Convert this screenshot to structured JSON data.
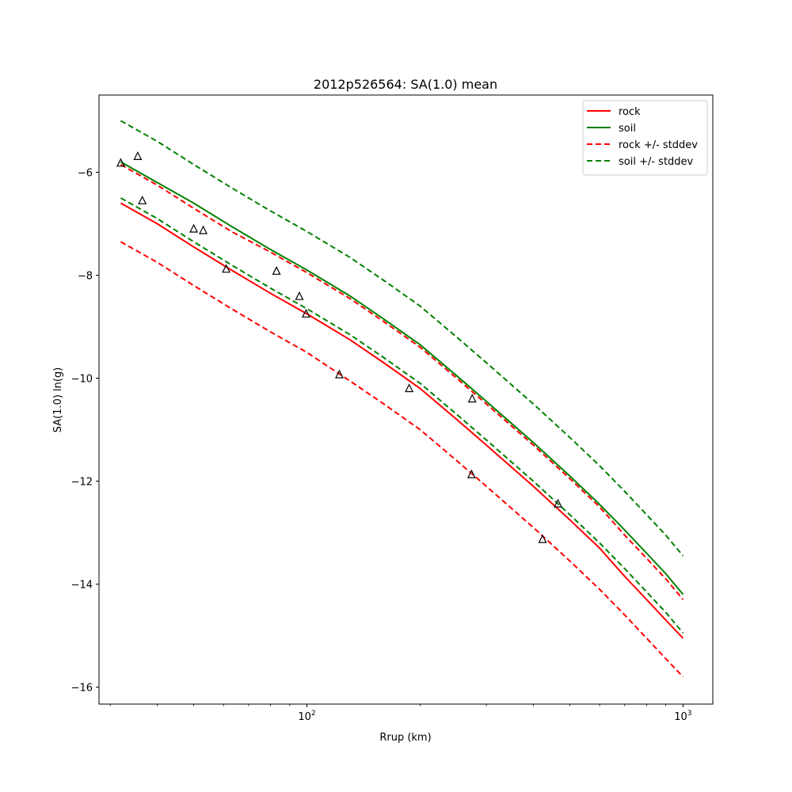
{
  "chart_data": {
    "type": "line",
    "title": "2012p526564: SA(1.0) mean",
    "xlabel": "Rrup (km)",
    "ylabel": "SA(1.0) ln(g)",
    "xscale": "log",
    "xlim": [
      28,
      1200
    ],
    "ylim": [
      -16.33,
      -4.5
    ],
    "x_major_ticks": [
      {
        "value": 100,
        "label": "10",
        "exp": "2"
      },
      {
        "value": 1000,
        "label": "10",
        "exp": "3"
      }
    ],
    "y_ticks": [
      -16,
      -14,
      -12,
      -10,
      -8,
      -6
    ],
    "y_tick_labels": [
      "−16",
      "−14",
      "−12",
      "−10",
      "−8",
      "−6"
    ],
    "grid": false,
    "legend_position": "upper right",
    "x": [
      32,
      40,
      50,
      63,
      80,
      100,
      130,
      160,
      200,
      250,
      300,
      400,
      500,
      600,
      700,
      800,
      900,
      1000
    ],
    "series": [
      {
        "name": "rock",
        "color": "#ff0000",
        "style": "solid",
        "values": [
          -6.6,
          -7.0,
          -7.45,
          -7.9,
          -8.35,
          -8.75,
          -9.25,
          -9.7,
          -10.2,
          -10.8,
          -11.3,
          -12.1,
          -12.75,
          -13.3,
          -13.85,
          -14.3,
          -14.7,
          -15.05
        ]
      },
      {
        "name": "soil",
        "color": "#008000",
        "style": "solid",
        "values": [
          -5.8,
          -6.2,
          -6.6,
          -7.05,
          -7.5,
          -7.9,
          -8.4,
          -8.85,
          -9.35,
          -9.95,
          -10.45,
          -11.25,
          -11.9,
          -12.45,
          -12.95,
          -13.4,
          -13.8,
          -14.2
        ]
      },
      {
        "name": "rock +/- stddev",
        "color": "#ff0000",
        "style": "dashed",
        "values": [
          -5.85,
          -6.25,
          -6.7,
          -7.15,
          -7.55,
          -7.95,
          -8.45,
          -8.9,
          -9.4,
          -10.0,
          -10.5,
          -11.3,
          -11.95,
          -12.5,
          -13.05,
          -13.5,
          -13.9,
          -14.3
        ]
      },
      {
        "name": "rock +/- stddev",
        "color": "#ff0000",
        "style": "dashed",
        "legend": false,
        "values": [
          -7.35,
          -7.75,
          -8.2,
          -8.65,
          -9.1,
          -9.5,
          -10.05,
          -10.5,
          -11.0,
          -11.6,
          -12.1,
          -12.9,
          -13.55,
          -14.1,
          -14.6,
          -15.05,
          -15.45,
          -15.8
        ]
      },
      {
        "name": "soil +/- stddev",
        "color": "#008000",
        "style": "dashed",
        "values": [
          -5.0,
          -5.4,
          -5.85,
          -6.3,
          -6.75,
          -7.15,
          -7.65,
          -8.1,
          -8.6,
          -9.2,
          -9.7,
          -10.5,
          -11.15,
          -11.7,
          -12.2,
          -12.65,
          -13.05,
          -13.45
        ]
      },
      {
        "name": "soil +/- stddev",
        "color": "#008000",
        "style": "dashed",
        "legend": false,
        "values": [
          -6.5,
          -6.9,
          -7.35,
          -7.8,
          -8.25,
          -8.65,
          -9.15,
          -9.6,
          -10.1,
          -10.7,
          -11.2,
          -12.0,
          -12.65,
          -13.2,
          -13.7,
          -14.15,
          -14.55,
          -14.95
        ]
      }
    ],
    "observations": {
      "marker": "triangle",
      "color": "#000000",
      "points": [
        {
          "x": 32,
          "y": -5.82
        },
        {
          "x": 35.5,
          "y": -5.69
        },
        {
          "x": 36.5,
          "y": -6.55
        },
        {
          "x": 50,
          "y": -7.1
        },
        {
          "x": 53,
          "y": -7.13
        },
        {
          "x": 61,
          "y": -7.88
        },
        {
          "x": 83,
          "y": -7.92
        },
        {
          "x": 95.5,
          "y": -8.41
        },
        {
          "x": 99.5,
          "y": -8.75
        },
        {
          "x": 122,
          "y": -9.93
        },
        {
          "x": 187,
          "y": -10.2
        },
        {
          "x": 275,
          "y": -10.4
        },
        {
          "x": 274,
          "y": -11.87
        },
        {
          "x": 423,
          "y": -13.13
        },
        {
          "x": 465,
          "y": -12.44
        }
      ]
    }
  }
}
